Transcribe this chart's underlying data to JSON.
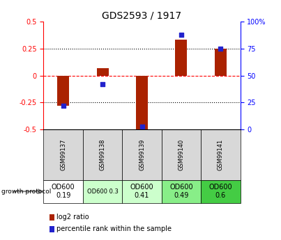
{
  "title": "GDS2593 / 1917",
  "samples": [
    "GSM99137",
    "GSM99138",
    "GSM99139",
    "GSM99140",
    "GSM99141"
  ],
  "log2_ratio": [
    -0.28,
    0.07,
    -0.52,
    0.33,
    0.25
  ],
  "percentile_rank": [
    22,
    42,
    3,
    88,
    75
  ],
  "left_ylim": [
    -0.5,
    0.5
  ],
  "right_ylim": [
    0,
    100
  ],
  "bar_color": "#aa2200",
  "dot_color": "#2222cc",
  "protocol_labels": [
    "OD600\n0.19",
    "OD600 0.3",
    "OD600\n0.41",
    "OD600\n0.49",
    "OD600\n0.6"
  ],
  "protocol_colors": [
    "#ffffff",
    "#ccffcc",
    "#ccffcc",
    "#88ee88",
    "#44cc44"
  ],
  "protocol_fontsize": [
    7,
    6,
    7,
    7,
    7
  ],
  "bg_color": "#d8d8d8",
  "title_fontsize": 10,
  "tick_fontsize": 7,
  "bar_width": 0.3
}
